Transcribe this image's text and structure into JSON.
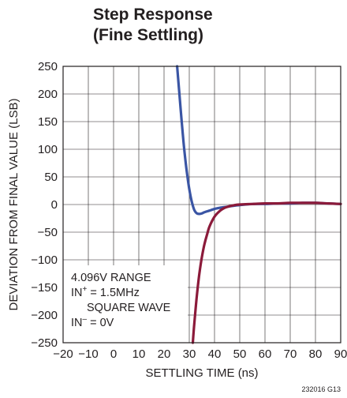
{
  "title_line1": "Step Response",
  "title_line2": "(Fine Settling)",
  "figure_id": "232016 G13",
  "chart_data": {
    "type": "line",
    "title": "Step Response (Fine Settling)",
    "xlabel": "SETTLING TIME (ns)",
    "ylabel": "DEVIATION FROM FINAL VALUE (LSB)",
    "xlim": [
      -20,
      90
    ],
    "ylim": [
      -250,
      250
    ],
    "xticks": [
      -20,
      -10,
      0,
      10,
      20,
      30,
      40,
      50,
      60,
      70,
      80,
      90
    ],
    "xtick_labels": [
      "−20",
      "−10",
      "0",
      "10",
      "20",
      "30",
      "40",
      "50",
      "60",
      "70",
      "80",
      "90"
    ],
    "yticks": [
      250,
      200,
      150,
      100,
      50,
      0,
      -50,
      -100,
      -150,
      -200,
      -250
    ],
    "ytick_labels": [
      "250",
      "200",
      "150",
      "100",
      "50",
      "0",
      "−50",
      "−100",
      "−150",
      "−200",
      "−250"
    ],
    "grid": true,
    "annotation": {
      "line1": "4.096V RANGE",
      "line2_prefix": "IN",
      "line2_sup": "+",
      "line2_rest": " = 1.5MHz",
      "line3": "SQUARE WAVE",
      "line4_prefix": "IN",
      "line4_sup": "–",
      "line4_rest": " = 0V"
    },
    "series": [
      {
        "color": "#3a55a4",
        "x": [
          25.2,
          26,
          27,
          28,
          29,
          30,
          31,
          32,
          33,
          34,
          35,
          36,
          38,
          40,
          42,
          45,
          48,
          52,
          56,
          60,
          65,
          70,
          75,
          80,
          85,
          90
        ],
        "y": [
          250,
          205,
          150,
          100,
          60,
          28,
          5,
          -10,
          -16,
          -17,
          -16,
          -14,
          -11,
          -8,
          -6,
          -4,
          -2,
          0,
          1,
          1,
          2,
          2,
          3,
          3,
          2,
          1
        ]
      },
      {
        "color": "#8b1a3a",
        "x": [
          31.4,
          32,
          33,
          34,
          35,
          36,
          37,
          38,
          40,
          42,
          44,
          46,
          48,
          50,
          55,
          60,
          65,
          70,
          75,
          80,
          85,
          90
        ],
        "y": [
          -250,
          -215,
          -165,
          -125,
          -95,
          -72,
          -55,
          -40,
          -22,
          -12,
          -6,
          -3,
          -1,
          0,
          1,
          2,
          2,
          3,
          3,
          3,
          2,
          1
        ]
      }
    ]
  }
}
